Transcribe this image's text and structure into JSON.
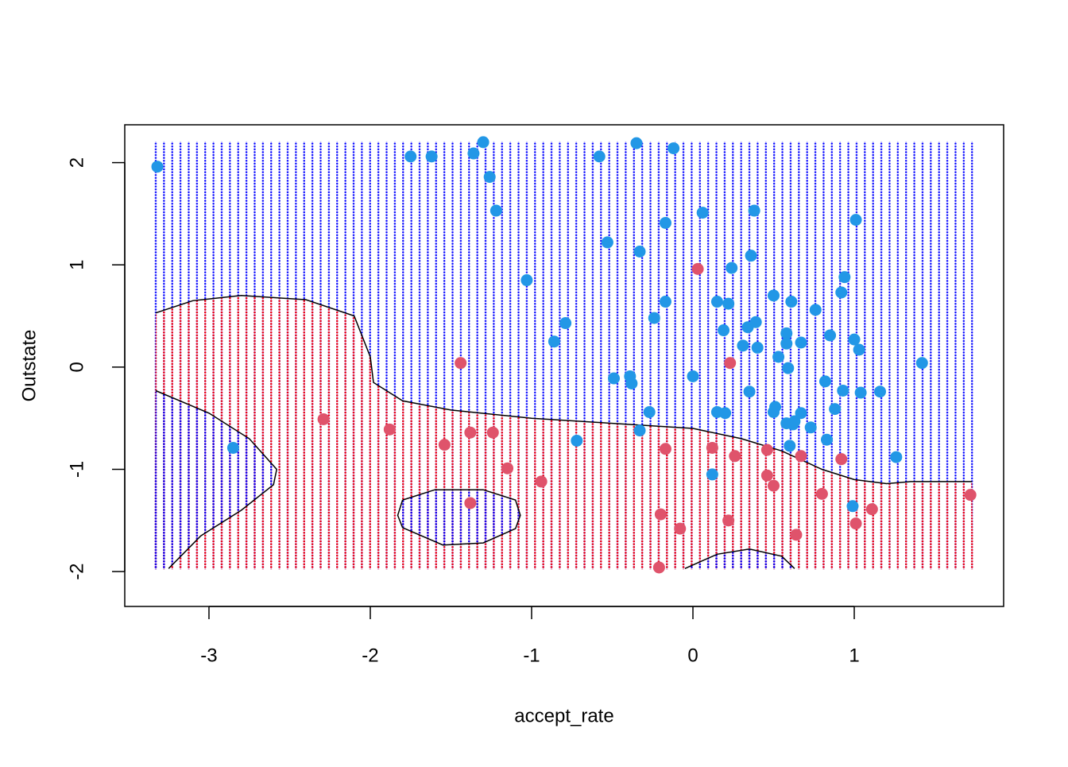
{
  "chart_data": {
    "type": "scatter",
    "xlabel": "accept_rate",
    "ylabel": "Outstate",
    "xlim": [
      -3.522,
      1.926
    ],
    "ylim": [
      -2.341,
      2.37
    ],
    "xticks": [
      -3,
      -2,
      -1,
      0,
      1
    ],
    "yticks": [
      -2,
      -1,
      0,
      1,
      2
    ],
    "series": [
      {
        "color": "#2297E6",
        "x": [
          -3.32,
          -1.75,
          -1.62,
          -1.36,
          -1.3,
          -1.26,
          -1.22,
          -0.58,
          -0.35,
          -0.12,
          -1.03,
          -0.53,
          -0.33,
          -0.17,
          0.06,
          0.38,
          1.01,
          0.36,
          0.24,
          0.94,
          0.92,
          -0.17,
          0.15,
          0.22,
          0.5,
          0.61,
          0.76,
          -0.24,
          -0.79,
          -0.86,
          0.19,
          0.34,
          0.39,
          0.58,
          0.85,
          1.0,
          0.31,
          0.4,
          0.58,
          0.67,
          1.03,
          0.53,
          1.42,
          0.59,
          -0.39,
          -0.49,
          -0.38,
          0.0,
          0.82,
          0.35,
          0.93,
          1.04,
          1.16,
          0.51,
          0.5,
          -0.27,
          0.15,
          0.2,
          0.67,
          0.88,
          0.58,
          0.62,
          0.63,
          0.73,
          -0.33,
          -0.72,
          0.83,
          0.6,
          -2.85,
          0.12,
          1.26,
          0.99
        ],
        "values": [
          1.96,
          2.06,
          2.06,
          2.09,
          2.2,
          1.86,
          1.53,
          2.06,
          2.19,
          2.14,
          0.85,
          1.22,
          1.13,
          1.41,
          1.51,
          1.53,
          1.44,
          1.09,
          0.97,
          0.88,
          0.73,
          0.64,
          0.64,
          0.62,
          0.7,
          0.64,
          0.56,
          0.48,
          0.43,
          0.25,
          0.36,
          0.39,
          0.44,
          0.33,
          0.31,
          0.27,
          0.21,
          0.19,
          0.23,
          0.24,
          0.17,
          0.1,
          0.04,
          -0.01,
          -0.09,
          -0.11,
          -0.16,
          -0.09,
          -0.14,
          -0.24,
          -0.23,
          -0.25,
          -0.24,
          -0.39,
          -0.44,
          -0.44,
          -0.44,
          -0.45,
          -0.45,
          -0.41,
          -0.55,
          -0.56,
          -0.53,
          -0.59,
          -0.62,
          -0.72,
          -0.71,
          -0.77,
          -0.79,
          -1.05,
          -0.88,
          -1.36
        ]
      },
      {
        "color": "#DF536B",
        "x": [
          0.03,
          -1.44,
          0.23,
          -2.29,
          -1.88,
          -1.54,
          -1.38,
          -1.24,
          -1.15,
          -0.94,
          -0.17,
          0.12,
          0.26,
          0.46,
          0.67,
          0.92,
          0.46,
          0.5,
          0.8,
          1.72,
          1.11,
          1.01,
          -1.38,
          -0.2,
          0.22,
          -0.08,
          0.64,
          -0.21
        ],
        "values": [
          0.96,
          0.04,
          0.04,
          -0.51,
          -0.61,
          -0.76,
          -0.64,
          -0.64,
          -0.99,
          -1.12,
          -0.8,
          -0.79,
          -0.87,
          -0.81,
          -0.87,
          -0.9,
          -1.06,
          -1.16,
          -1.24,
          -1.25,
          -1.39,
          -1.53,
          -1.33,
          -1.44,
          -1.5,
          -1.58,
          -1.64,
          -1.96
        ]
      }
    ],
    "grid_xlim": [
      -3.33,
      1.73
    ],
    "grid_ylim": [
      -1.97,
      2.2
    ],
    "region_colors": {
      "upper": "blue",
      "lower": "red"
    },
    "boundary": [
      {
        "x": [
          -3.33,
          -3.1,
          -2.8,
          -2.4,
          -2.1,
          -2.0,
          -1.98,
          -1.8,
          -1.5,
          -1.0,
          -0.5,
          0.0,
          0.3,
          0.55,
          0.8,
          1.0,
          1.2,
          1.35,
          1.73
        ],
        "y": [
          0.53,
          0.65,
          0.7,
          0.66,
          0.5,
          0.1,
          -0.15,
          -0.33,
          -0.42,
          -0.5,
          -0.55,
          -0.6,
          -0.7,
          -0.82,
          -1.0,
          -1.1,
          -1.14,
          -1.12,
          -1.12
        ]
      },
      {
        "x": [
          -3.33,
          -3.0,
          -2.75,
          -2.58,
          -2.6,
          -2.8,
          -3.05,
          -3.25
        ],
        "y": [
          -0.23,
          -0.45,
          -0.7,
          -1.0,
          -1.15,
          -1.4,
          -1.65,
          -1.97
        ]
      },
      {
        "x": [
          -1.8,
          -1.6,
          -1.3,
          -1.1,
          -1.07,
          -1.1,
          -1.3,
          -1.55,
          -1.8,
          -1.83,
          -1.8
        ],
        "y": [
          -1.3,
          -1.2,
          -1.2,
          -1.3,
          -1.45,
          -1.58,
          -1.72,
          -1.74,
          -1.57,
          -1.45,
          -1.3
        ]
      },
      {
        "x": [
          -0.05,
          0.15,
          0.35,
          0.55,
          0.63
        ],
        "y": [
          -1.97,
          -1.83,
          -1.78,
          -1.85,
          -1.97
        ]
      }
    ]
  }
}
